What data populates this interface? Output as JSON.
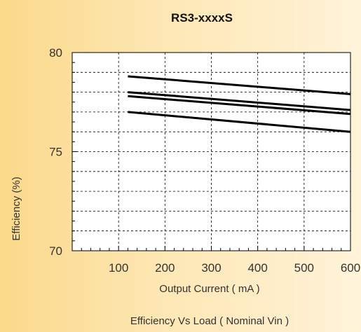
{
  "chart_data": {
    "type": "line",
    "title": "RS3-xxxxS",
    "xlabel": "Output Current ( mA )",
    "ylabel": "Efficiency (%)",
    "caption": "Efficiency  Vs Load ( Nominal Vin )",
    "xlim": [
      0,
      600
    ],
    "ylim": [
      70,
      80
    ],
    "xticks": [
      100,
      200,
      300,
      400,
      500,
      600
    ],
    "yticks": [
      70,
      75,
      80
    ],
    "grid": true,
    "grid_style": "dashed",
    "line_color": "#000000",
    "series": [
      {
        "x": [
          120,
          600
        ],
        "values": [
          78.8,
          77.9
        ]
      },
      {
        "x": [
          120,
          600
        ],
        "values": [
          78.0,
          77.1
        ]
      },
      {
        "x": [
          120,
          600
        ],
        "values": [
          77.8,
          76.9
        ]
      },
      {
        "x": [
          120,
          600
        ],
        "values": [
          77.0,
          76.0
        ]
      }
    ]
  }
}
